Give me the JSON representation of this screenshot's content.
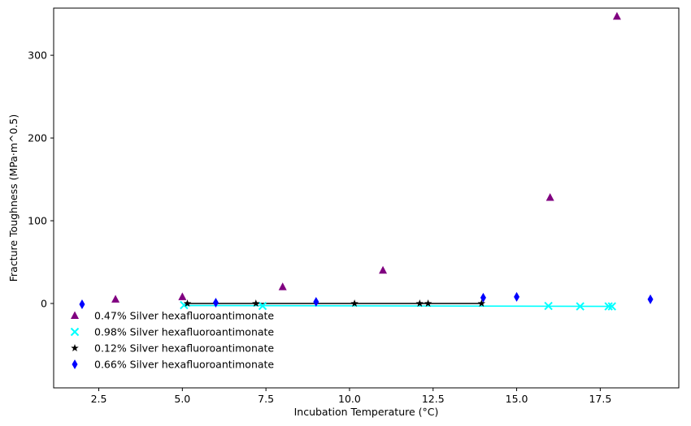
{
  "chart_data": {
    "type": "scatter",
    "xlabel": "Incubation Temperature (°C)",
    "ylabel": "Fracture Toughness (MPa·m^0.5)",
    "xlim": [
      1.15,
      19.85
    ],
    "ylim": [
      -102,
      357
    ],
    "xticks": [
      2.5,
      5.0,
      7.5,
      10.0,
      12.5,
      15.0,
      17.5
    ],
    "xtick_labels": [
      "2.5",
      "5.0",
      "7.5",
      "10.0",
      "12.5",
      "15.0",
      "17.5"
    ],
    "yticks": [
      0,
      100,
      200,
      300
    ],
    "ytick_labels": [
      "0",
      "100",
      "200",
      "300"
    ],
    "grid": false,
    "legend_position": "lower-left",
    "series": [
      {
        "name": "0.47% Silver hexafluoroantimonate",
        "marker": "triangle",
        "color": "#800080",
        "x": [
          3,
          5,
          8,
          11,
          16,
          18
        ],
        "y": [
          5,
          8,
          20,
          40,
          128,
          347
        ]
      },
      {
        "name": "0.98% Silver hexafluoroantimonate",
        "marker": "x",
        "color": "#00ffff",
        "x": [
          5.05,
          7.4,
          15.95,
          16.9,
          17.75,
          17.85
        ],
        "y": [
          -2,
          -3,
          -3,
          -3.5,
          -3.5,
          -3.5
        ],
        "fit": {
          "x": [
            5.05,
            17.85
          ],
          "y": [
            -2.5,
            -3.5
          ]
        }
      },
      {
        "name": "0.12% Silver hexafluoroantimonate",
        "marker": "star",
        "color": "#000000",
        "x": [
          5.15,
          7.2,
          10.15,
          12.1,
          12.35,
          13.95
        ],
        "y": [
          0,
          0,
          0,
          0,
          0,
          0
        ],
        "fit": {
          "x": [
            5.15,
            13.95
          ],
          "y": [
            0,
            0
          ]
        }
      },
      {
        "name": "0.66% Silver hexafluoroantimonate",
        "marker": "diamond",
        "color": "#0000ff",
        "x": [
          2,
          6,
          9,
          14,
          15,
          19
        ],
        "y": [
          -1,
          1,
          2,
          7,
          8,
          5
        ]
      }
    ]
  }
}
